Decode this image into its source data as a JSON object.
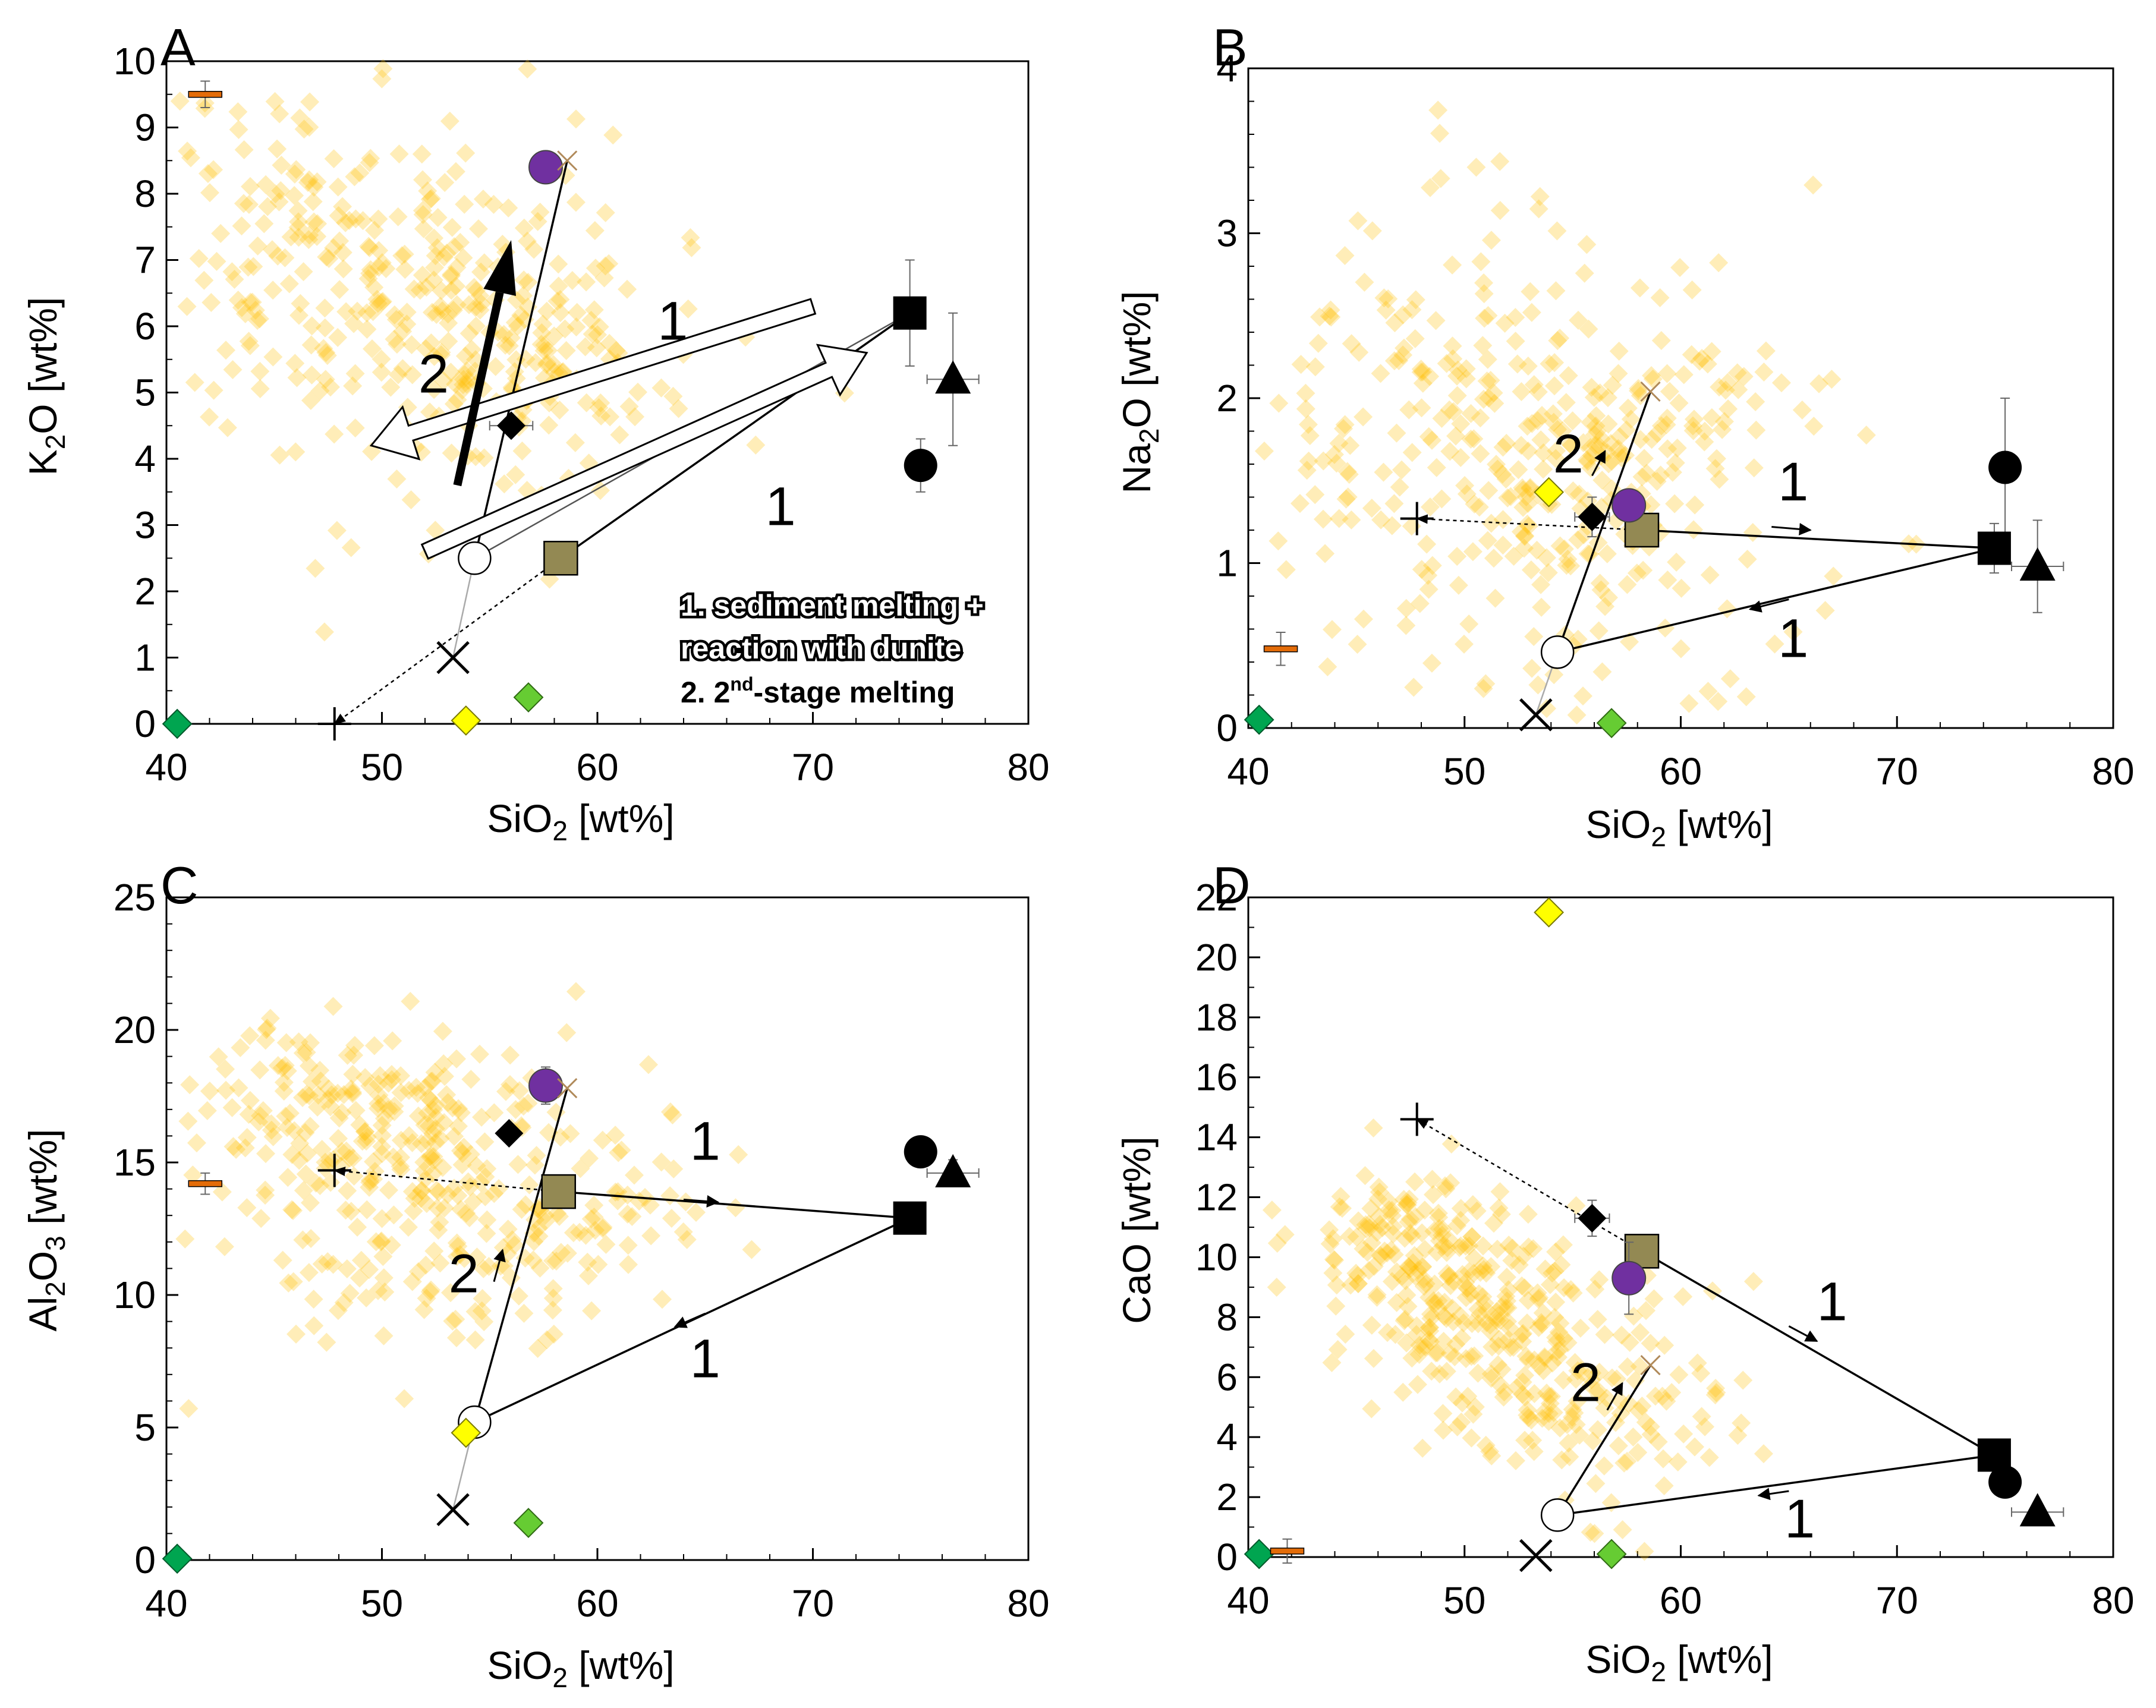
{
  "chart_data": [
    {
      "panel": "A",
      "type": "scatter",
      "ylabel_main": "K",
      "ylabel_sub": "2",
      "ylabel_tail": "O [wt%]",
      "xlabel_main": "SiO",
      "xlabel_sub": "2",
      "xlabel_tail": " [wt%]",
      "xlim": [
        40,
        80
      ],
      "ylim": [
        0,
        10
      ],
      "xticks": [
        40,
        50,
        60,
        70,
        80
      ],
      "yticks": [
        0,
        1,
        2,
        3,
        4,
        5,
        6,
        7,
        8,
        9,
        10
      ],
      "minor_x": 2,
      "minor_y": 0.5,
      "cloud": {
        "centers": [
          [
            47.5,
            7.3,
            4.0,
            1.3
          ],
          [
            55.5,
            5.6,
            3.8,
            0.9
          ],
          [
            52,
            6.2,
            7,
            1.6
          ]
        ],
        "count": 420,
        "seed": 11
      },
      "points": [
        {
          "name": "filled-circle",
          "x": 75,
          "y": 3.9,
          "ex": 0,
          "ey": 0.4
        },
        {
          "name": "filled-square",
          "x": 74.5,
          "y": 6.2,
          "ex": 0,
          "ey": 0.8
        },
        {
          "name": "filled-triangle",
          "x": 76.5,
          "y": 5.2,
          "ex": 1.2,
          "ey": 1.0
        },
        {
          "name": "filled-diamond",
          "x": 56,
          "y": 4.5,
          "ex": 1.0,
          "ey": 0
        },
        {
          "name": "olive-square",
          "x": 58.3,
          "y": 2.5,
          "ex": 0,
          "ey": 0
        },
        {
          "name": "open-circle",
          "x": 54.3,
          "y": 2.5,
          "ex": 0,
          "ey": 0
        },
        {
          "name": "purple-circle",
          "x": 57.6,
          "y": 8.4,
          "ex": 0,
          "ey": 0
        },
        {
          "name": "x-mark",
          "x": 53.3,
          "y": 1.0,
          "ex": 0,
          "ey": 0
        },
        {
          "name": "small-x",
          "x": 58.6,
          "y": 8.5,
          "ex": 0,
          "ey": 0
        },
        {
          "name": "plus-mark",
          "x": 47.8,
          "y": 0.0,
          "ex": 0,
          "ey": 0
        },
        {
          "name": "yellow-diamond",
          "x": 53.9,
          "y": 0.05,
          "ex": 0,
          "ey": 0
        },
        {
          "name": "green-diamond",
          "x": 56.8,
          "y": 0.4,
          "ex": 0,
          "ey": 0
        },
        {
          "name": "dark-green-diamond",
          "x": 40.5,
          "y": 0.0,
          "ex": 0,
          "ey": 0
        },
        {
          "name": "orange-bar",
          "x": 41.8,
          "y": 9.5,
          "ex": 0,
          "ey": 0.2
        }
      ],
      "lines": [
        {
          "from": [
            74.5,
            6.2
          ],
          "to": [
            54.3,
            2.5
          ],
          "style": "thin"
        },
        {
          "from": [
            74.5,
            6.2
          ],
          "to": [
            58.3,
            2.5
          ],
          "style": "solid"
        },
        {
          "from": [
            54.3,
            2.5
          ],
          "to": [
            58.6,
            8.5
          ],
          "style": "solid"
        },
        {
          "from": [
            54.3,
            2.5
          ],
          "to": [
            53.3,
            1.0
          ],
          "style": "faint"
        },
        {
          "from": [
            58.3,
            2.5
          ],
          "to": [
            47.8,
            0.0
          ],
          "style": "dashed"
        }
      ],
      "block_arrows": [
        {
          "from": [
            70.0,
            6.3
          ],
          "to": [
            49.5,
            4.2
          ]
        },
        {
          "from": [
            52.0,
            2.6
          ],
          "to": [
            72.5,
            5.6
          ]
        }
      ],
      "bold_arrows": [
        {
          "from": [
            53.5,
            3.6
          ],
          "to": [
            56.0,
            7.3
          ]
        }
      ],
      "labels": [
        {
          "text": "1",
          "x": 63.5,
          "y": 5.8
        },
        {
          "text": "1",
          "x": 68.5,
          "y": 3.0
        },
        {
          "text": "2",
          "x": 52.4,
          "y": 5.0
        }
      ],
      "notes": {
        "line1": "1. sediment melting +",
        "line2": "reaction with dunite",
        "line3_main": "2. 2",
        "line3_sup": "nd",
        "line3_tail": "-stage melting"
      }
    },
    {
      "panel": "B",
      "type": "scatter",
      "ylabel_main": "Na",
      "ylabel_sub": "2",
      "ylabel_tail": "O [wt%]",
      "xlabel_main": "SiO",
      "xlabel_sub": "2",
      "xlabel_tail": " [wt%]",
      "xlim": [
        40,
        80
      ],
      "ylim": [
        0,
        4
      ],
      "xticks": [
        40,
        50,
        60,
        70,
        80
      ],
      "yticks": [
        0,
        1,
        2,
        3,
        4
      ],
      "minor_x": 2,
      "minor_y": 0.2,
      "cloud": {
        "centers": [
          [
            49,
            1.9,
            5,
            0.6
          ],
          [
            56,
            1.6,
            4.5,
            0.5
          ],
          [
            52,
            1.4,
            8,
            0.8
          ]
        ],
        "count": 420,
        "seed": 23
      },
      "points": [
        {
          "name": "filled-circle",
          "x": 75,
          "y": 1.58,
          "ex": 0,
          "ey": 0.42
        },
        {
          "name": "filled-square",
          "x": 74.5,
          "y": 1.09,
          "ex": 0,
          "ey": 0.15
        },
        {
          "name": "filled-triangle",
          "x": 76.5,
          "y": 0.98,
          "ex": 1.2,
          "ey": 0.28
        },
        {
          "name": "filled-diamond",
          "x": 55.9,
          "y": 1.28,
          "ex": 0.8,
          "ey": 0.12
        },
        {
          "name": "olive-square",
          "x": 58.2,
          "y": 1.2,
          "ex": 0,
          "ey": 0
        },
        {
          "name": "open-circle",
          "x": 54.3,
          "y": 0.46,
          "ex": 0,
          "ey": 0
        },
        {
          "name": "purple-circle",
          "x": 57.6,
          "y": 1.35,
          "ex": 0,
          "ey": 0
        },
        {
          "name": "x-mark",
          "x": 53.3,
          "y": 0.08,
          "ex": 0,
          "ey": 0
        },
        {
          "name": "small-x",
          "x": 58.6,
          "y": 2.04,
          "ex": 0,
          "ey": 0
        },
        {
          "name": "plus-mark",
          "x": 47.8,
          "y": 1.27,
          "ex": 0,
          "ey": 0
        },
        {
          "name": "yellow-diamond",
          "x": 53.9,
          "y": 1.43,
          "ex": 0,
          "ey": 0
        },
        {
          "name": "green-diamond",
          "x": 56.8,
          "y": 0.03,
          "ex": 0,
          "ey": 0
        },
        {
          "name": "dark-green-diamond",
          "x": 40.5,
          "y": 0.05,
          "ex": 0,
          "ey": 0
        },
        {
          "name": "orange-bar",
          "x": 41.5,
          "y": 0.48,
          "ex": 0,
          "ey": 0.1
        }
      ],
      "lines": [
        {
          "from": [
            58.2,
            1.2
          ],
          "to": [
            74.5,
            1.09
          ],
          "style": "solid"
        },
        {
          "from": [
            74.5,
            1.09
          ],
          "to": [
            54.3,
            0.46
          ],
          "style": "solid"
        },
        {
          "from": [
            54.3,
            0.46
          ],
          "to": [
            58.6,
            2.04
          ],
          "style": "solid"
        },
        {
          "from": [
            54.3,
            0.46
          ],
          "to": [
            53.3,
            0.08
          ],
          "style": "faint"
        },
        {
          "from": [
            58.2,
            1.2
          ],
          "to": [
            47.8,
            1.27
          ],
          "style": "dashed"
        }
      ],
      "small_arrows": [
        {
          "from": [
            64.2,
            1.22
          ],
          "to": [
            66.0,
            1.2
          ]
        },
        {
          "from": [
            65.0,
            0.78
          ],
          "to": [
            63.2,
            0.72
          ]
        },
        {
          "from": [
            55.9,
            1.53
          ],
          "to": [
            56.5,
            1.68
          ]
        }
      ],
      "labels": [
        {
          "text": "1",
          "x": 65.2,
          "y": 1.38
        },
        {
          "text": "1",
          "x": 65.2,
          "y": 0.43
        },
        {
          "text": "2",
          "x": 54.8,
          "y": 1.55
        }
      ]
    },
    {
      "panel": "C",
      "type": "scatter",
      "ylabel_main": "Al",
      "ylabel_sub": "2",
      "ylabel_mid": "O",
      "ylabel_sub2": "3",
      "ylabel_tail": " [wt%]",
      "xlabel_main": "SiO",
      "xlabel_sub": "2",
      "xlabel_tail": " [wt%]",
      "xlim": [
        40,
        80
      ],
      "ylim": [
        0,
        25
      ],
      "xticks": [
        40,
        50,
        60,
        70,
        80
      ],
      "yticks": [
        0,
        5,
        10,
        15,
        20,
        25
      ],
      "minor_x": 2,
      "minor_y": 1,
      "cloud": {
        "centers": [
          [
            48.5,
            17,
            3.5,
            1.6
          ],
          [
            55,
            13,
            4,
            2.2
          ],
          [
            51,
            14.5,
            7,
            3
          ]
        ],
        "count": 420,
        "seed": 37
      },
      "points": [
        {
          "name": "filled-circle",
          "x": 75,
          "y": 15.4,
          "ex": 0,
          "ey": 0
        },
        {
          "name": "filled-square",
          "x": 74.5,
          "y": 12.9,
          "ex": 0,
          "ey": 0
        },
        {
          "name": "filled-triangle",
          "x": 76.5,
          "y": 14.6,
          "ex": 1.2,
          "ey": 0.5
        },
        {
          "name": "filled-diamond",
          "x": 55.9,
          "y": 16.1,
          "ex": 0,
          "ey": 0
        },
        {
          "name": "olive-square",
          "x": 58.2,
          "y": 13.9,
          "ex": 0,
          "ey": 0
        },
        {
          "name": "open-circle",
          "x": 54.3,
          "y": 5.2,
          "ex": 0,
          "ey": 0
        },
        {
          "name": "purple-circle",
          "x": 57.6,
          "y": 17.9,
          "ex": 0,
          "ey": 0.7
        },
        {
          "name": "x-mark",
          "x": 53.3,
          "y": 1.9,
          "ex": 0,
          "ey": 0
        },
        {
          "name": "small-x",
          "x": 58.6,
          "y": 17.8,
          "ex": 0,
          "ey": 0
        },
        {
          "name": "plus-mark",
          "x": 47.8,
          "y": 14.7,
          "ex": 0,
          "ey": 0
        },
        {
          "name": "yellow-diamond",
          "x": 53.9,
          "y": 4.8,
          "ex": 0,
          "ey": 0
        },
        {
          "name": "green-diamond",
          "x": 56.8,
          "y": 1.4,
          "ex": 0,
          "ey": 0
        },
        {
          "name": "dark-green-diamond",
          "x": 40.5,
          "y": 0.05,
          "ex": 0,
          "ey": 0
        },
        {
          "name": "orange-bar",
          "x": 41.8,
          "y": 14.2,
          "ex": 0,
          "ey": 0.4
        }
      ],
      "lines": [
        {
          "from": [
            58.2,
            13.9
          ],
          "to": [
            74.5,
            12.9
          ],
          "style": "solid"
        },
        {
          "from": [
            74.5,
            12.9
          ],
          "to": [
            54.3,
            5.2
          ],
          "style": "solid"
        },
        {
          "from": [
            54.3,
            5.2
          ],
          "to": [
            58.6,
            17.8
          ],
          "style": "solid"
        },
        {
          "from": [
            54.3,
            5.2
          ],
          "to": [
            53.3,
            1.9
          ],
          "style": "faint"
        },
        {
          "from": [
            58.2,
            13.9
          ],
          "to": [
            47.8,
            14.7
          ],
          "style": "dashed"
        }
      ],
      "small_arrows": [
        {
          "from": [
            64.0,
            13.6
          ],
          "to": [
            65.6,
            13.5
          ]
        },
        {
          "from": [
            65.0,
            9.3
          ],
          "to": [
            63.6,
            8.8
          ]
        },
        {
          "from": [
            55.2,
            10.5
          ],
          "to": [
            55.6,
            11.7
          ]
        }
      ],
      "labels": [
        {
          "text": "1",
          "x": 65.0,
          "y": 15.1
        },
        {
          "text": "1",
          "x": 65.0,
          "y": 6.9
        },
        {
          "text": "2",
          "x": 53.8,
          "y": 10.1
        }
      ]
    },
    {
      "panel": "D",
      "type": "scatter",
      "ylabel_main": "CaO [wt%]",
      "ylabel_sub": "",
      "ylabel_tail": "",
      "xlabel_main": "SiO",
      "xlabel_sub": "2",
      "xlabel_tail": " [wt%]",
      "xlim": [
        40,
        80
      ],
      "ylim": [
        0,
        22
      ],
      "xticks": [
        40,
        50,
        60,
        70,
        80
      ],
      "yticks": [
        0,
        2,
        4,
        6,
        8,
        10,
        12,
        14,
        16,
        18,
        20,
        22
      ],
      "minor_x": 2,
      "minor_y": 1,
      "cloud": {
        "centers": [
          [
            47.5,
            10.3,
            2.8,
            1.6
          ],
          [
            51.5,
            8.0,
            3,
            1.4
          ],
          [
            56,
            5.0,
            4,
            1.6
          ]
        ],
        "count": 420,
        "seed": 53
      },
      "points": [
        {
          "name": "filled-circle",
          "x": 75,
          "y": 2.5,
          "ex": 0,
          "ey": 0
        },
        {
          "name": "filled-square",
          "x": 74.5,
          "y": 3.4,
          "ex": 0,
          "ey": 0
        },
        {
          "name": "filled-triangle",
          "x": 76.5,
          "y": 1.5,
          "ex": 1.2,
          "ey": 0
        },
        {
          "name": "filled-diamond",
          "x": 55.9,
          "y": 11.3,
          "ex": 0.8,
          "ey": 0.6
        },
        {
          "name": "olive-square",
          "x": 58.2,
          "y": 10.2,
          "ex": 0,
          "ey": 0
        },
        {
          "name": "open-circle",
          "x": 54.3,
          "y": 1.4,
          "ex": 0,
          "ey": 0
        },
        {
          "name": "purple-circle",
          "x": 57.6,
          "y": 9.3,
          "ex": 0,
          "ey": 1.2
        },
        {
          "name": "x-mark",
          "x": 53.3,
          "y": 0.05,
          "ex": 0,
          "ey": 0
        },
        {
          "name": "small-x",
          "x": 58.6,
          "y": 6.4,
          "ex": 0,
          "ey": 0
        },
        {
          "name": "plus-mark",
          "x": 47.8,
          "y": 14.6,
          "ex": 0,
          "ey": 0
        },
        {
          "name": "yellow-diamond",
          "x": 53.9,
          "y": 21.5,
          "ex": 0,
          "ey": 0
        },
        {
          "name": "green-diamond",
          "x": 56.8,
          "y": 0.1,
          "ex": 0,
          "ey": 0
        },
        {
          "name": "dark-green-diamond",
          "x": 40.5,
          "y": 0.1,
          "ex": 0,
          "ey": 0
        },
        {
          "name": "orange-bar",
          "x": 41.8,
          "y": 0.2,
          "ex": 0,
          "ey": 0.4
        }
      ],
      "lines": [
        {
          "from": [
            58.2,
            10.2
          ],
          "to": [
            74.5,
            3.4
          ],
          "style": "solid"
        },
        {
          "from": [
            74.5,
            3.4
          ],
          "to": [
            54.3,
            1.4
          ],
          "style": "solid"
        },
        {
          "from": [
            54.3,
            1.4
          ],
          "to": [
            58.6,
            6.4
          ],
          "style": "solid"
        },
        {
          "from": [
            58.2,
            10.2
          ],
          "to": [
            47.8,
            14.6
          ],
          "style": "dashed"
        }
      ],
      "small_arrows": [
        {
          "from": [
            65.0,
            7.7
          ],
          "to": [
            66.3,
            7.2
          ]
        },
        {
          "from": [
            65.0,
            2.2
          ],
          "to": [
            63.6,
            2.05
          ]
        },
        {
          "from": [
            56.6,
            4.9
          ],
          "to": [
            57.3,
            5.8
          ]
        }
      ],
      "labels": [
        {
          "text": "1",
          "x": 67.0,
          "y": 7.9
        },
        {
          "text": "1",
          "x": 65.5,
          "y": 0.65
        },
        {
          "text": "2",
          "x": 55.6,
          "y": 5.2
        }
      ]
    }
  ],
  "colors": {
    "cloud": "#ffc000",
    "purple": "#7030a0",
    "olive": "#938953",
    "yellow": "#ffff00",
    "green": "#66cc33",
    "dark_green": "#00a550",
    "orange": "#e36c09",
    "axis": "#000000"
  }
}
